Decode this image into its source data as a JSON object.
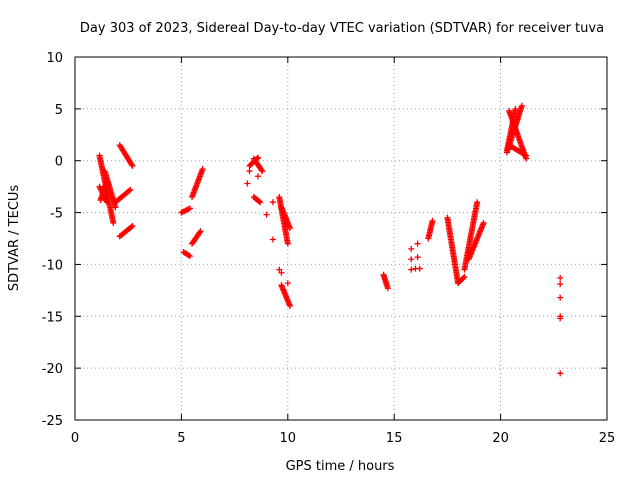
{
  "chart_data": {
    "type": "scatter",
    "title": "Day 303 of 2023, Sidereal Day-to-day VTEC variation (SDTVAR) for receiver tuva",
    "xlabel": "GPS time / hours",
    "ylabel": "SDTVAR / TECUs",
    "xlim": [
      0,
      25
    ],
    "ylim": [
      -25,
      10
    ],
    "grid": true,
    "marker": "+",
    "color": "#ff0000",
    "x_ticks": [
      0,
      5,
      10,
      15,
      20,
      25
    ],
    "y_ticks": [
      -25,
      -20,
      -15,
      -10,
      -5,
      0,
      5,
      10
    ],
    "tracks": [
      {
        "x0": 1.15,
        "y0": 0.5,
        "x1": 1.8,
        "y1": -6.0
      },
      {
        "x0": 1.15,
        "y0": -2.5,
        "x1": 1.5,
        "y1": -4.0
      },
      {
        "x0": 1.2,
        "y0": -3.8,
        "x1": 1.5,
        "y1": -2.0
      },
      {
        "x0": 1.4,
        "y0": -1.0,
        "x1": 1.9,
        "y1": -4.5
      },
      {
        "x0": 2.1,
        "y0": 1.5,
        "x1": 2.7,
        "y1": -0.5
      },
      {
        "x0": 1.9,
        "y0": -4.0,
        "x1": 2.6,
        "y1": -2.8
      },
      {
        "x0": 2.1,
        "y0": -7.3,
        "x1": 2.7,
        "y1": -6.3
      },
      {
        "x0": 5.0,
        "y0": -5.0,
        "x1": 5.4,
        "y1": -4.6
      },
      {
        "x0": 5.1,
        "y0": -8.8,
        "x1": 5.4,
        "y1": -9.2
      },
      {
        "x0": 5.5,
        "y0": -3.5,
        "x1": 6.0,
        "y1": -0.8
      },
      {
        "x0": 5.5,
        "y0": -8.0,
        "x1": 5.9,
        "y1": -6.8
      },
      {
        "x0": 8.2,
        "y0": -0.5,
        "x1": 8.6,
        "y1": 0.3
      },
      {
        "x0": 8.4,
        "y0": 0.2,
        "x1": 8.8,
        "y1": -1.0
      },
      {
        "x0": 8.4,
        "y0": -3.5,
        "x1": 8.7,
        "y1": -4.0
      },
      {
        "x0": 9.6,
        "y0": -3.5,
        "x1": 10.0,
        "y1": -8.0
      },
      {
        "x0": 9.7,
        "y0": -4.5,
        "x1": 10.1,
        "y1": -6.5
      },
      {
        "x0": 9.7,
        "y0": -12.0,
        "x1": 10.1,
        "y1": -14.0
      },
      {
        "x0": 14.5,
        "y0": -11.0,
        "x1": 14.7,
        "y1": -12.3
      },
      {
        "x0": 16.6,
        "y0": -7.5,
        "x1": 16.8,
        "y1": -5.8
      },
      {
        "x0": 17.5,
        "y0": -5.5,
        "x1": 18.0,
        "y1": -11.8
      },
      {
        "x0": 18.0,
        "y0": -11.8,
        "x1": 18.3,
        "y1": -11.2
      },
      {
        "x0": 18.3,
        "y0": -10.5,
        "x1": 18.9,
        "y1": -4.0
      },
      {
        "x0": 18.5,
        "y0": -9.5,
        "x1": 19.2,
        "y1": -6.0
      },
      {
        "x0": 20.3,
        "y0": 1.0,
        "x1": 20.7,
        "y1": 5.0
      },
      {
        "x0": 20.4,
        "y0": 4.8,
        "x1": 21.2,
        "y1": 0.2
      },
      {
        "x0": 20.3,
        "y0": 0.8,
        "x1": 21.0,
        "y1": 5.3
      },
      {
        "x0": 20.4,
        "y0": 1.5,
        "x1": 21.2,
        "y1": 0.5
      }
    ],
    "points": [
      {
        "x": 8.2,
        "y": -1.0
      },
      {
        "x": 8.1,
        "y": -2.2
      },
      {
        "x": 8.6,
        "y": -1.5
      },
      {
        "x": 9.0,
        "y": -5.2
      },
      {
        "x": 9.3,
        "y": -4.0
      },
      {
        "x": 9.3,
        "y": -7.6
      },
      {
        "x": 9.6,
        "y": -10.5
      },
      {
        "x": 9.7,
        "y": -10.8
      },
      {
        "x": 10.0,
        "y": -11.8
      },
      {
        "x": 15.8,
        "y": -8.5
      },
      {
        "x": 15.8,
        "y": -9.5
      },
      {
        "x": 15.8,
        "y": -10.5
      },
      {
        "x": 16.0,
        "y": -10.4
      },
      {
        "x": 16.1,
        "y": -8.0
      },
      {
        "x": 16.1,
        "y": -9.3
      },
      {
        "x": 16.2,
        "y": -10.4
      },
      {
        "x": 22.8,
        "y": -11.3
      },
      {
        "x": 22.8,
        "y": -11.9
      },
      {
        "x": 22.8,
        "y": -13.2
      },
      {
        "x": 22.8,
        "y": -15.0
      },
      {
        "x": 22.8,
        "y": -15.2
      },
      {
        "x": 22.8,
        "y": -20.5
      }
    ]
  }
}
